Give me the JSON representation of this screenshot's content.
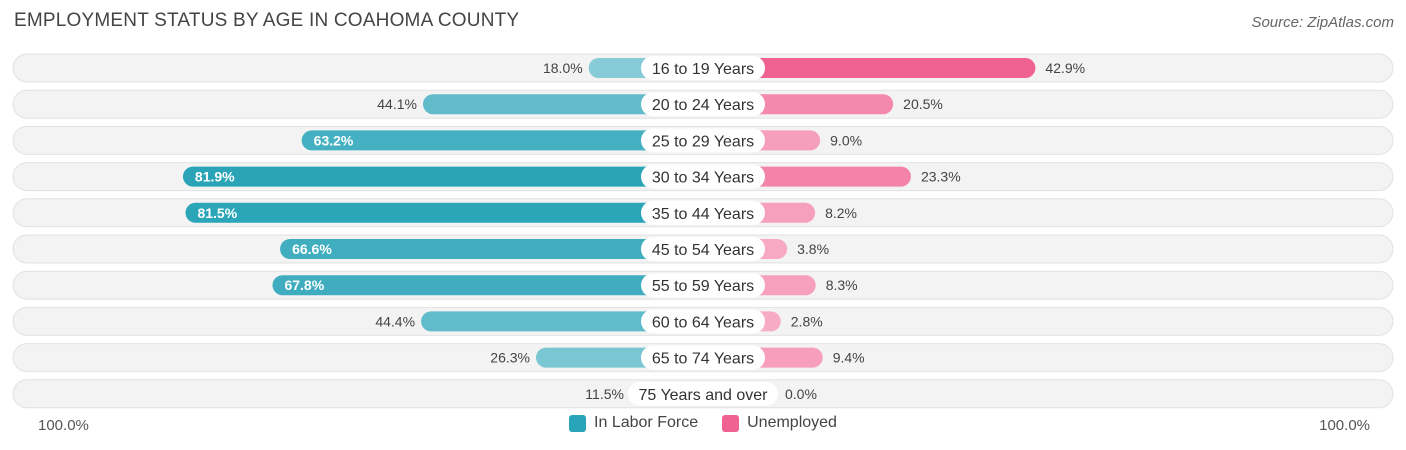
{
  "title": "EMPLOYMENT STATUS BY AGE IN COAHOMA COUNTY",
  "source": "Source: ZipAtlas.com",
  "axis": {
    "left_label": "100.0%",
    "right_label": "100.0%"
  },
  "legend": [
    {
      "label": "In Labor Force",
      "color": "#2aa4b8"
    },
    {
      "label": "Unemployed",
      "color": "#f06292"
    }
  ],
  "chart_data": {
    "type": "bar",
    "orientation": "horizontal-diverging",
    "title": "EMPLOYMENT STATUS BY AGE IN COAHOMA COUNTY",
    "categories": [
      "16 to 19 Years",
      "20 to 24 Years",
      "25 to 29 Years",
      "30 to 34 Years",
      "35 to 44 Years",
      "45 to 54 Years",
      "55 to 59 Years",
      "60 to 64 Years",
      "65 to 74 Years",
      "75 Years and over"
    ],
    "series": [
      {
        "name": "In Labor Force",
        "values": [
          18.0,
          44.1,
          63.2,
          81.9,
          81.5,
          66.6,
          67.8,
          44.4,
          26.3,
          11.5
        ],
        "labels": [
          "18.0%",
          "44.1%",
          "63.2%",
          "81.9%",
          "81.5%",
          "66.6%",
          "67.8%",
          "44.4%",
          "26.3%",
          "11.5%"
        ]
      },
      {
        "name": "Unemployed",
        "values": [
          42.9,
          20.5,
          9.0,
          23.3,
          8.2,
          3.8,
          8.3,
          2.8,
          9.4,
          0.0
        ],
        "labels": [
          "42.9%",
          "20.5%",
          "9.0%",
          "23.3%",
          "8.2%",
          "3.8%",
          "8.3%",
          "2.8%",
          "9.4%",
          "0.0%"
        ]
      }
    ],
    "xlim": [
      -100,
      100
    ],
    "legend_position": "bottom-center"
  }
}
